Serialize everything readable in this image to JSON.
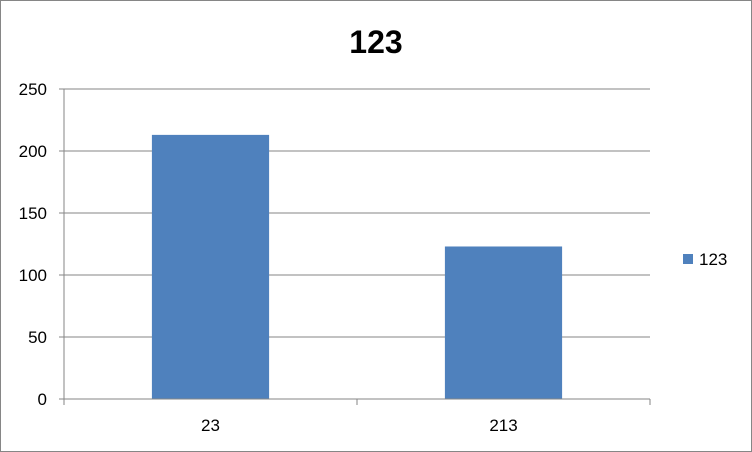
{
  "chart_data": {
    "type": "bar",
    "title": "123",
    "categories": [
      "23",
      "213"
    ],
    "series": [
      {
        "name": "123",
        "values": [
          213,
          123
        ],
        "color": "#4F81BD"
      }
    ],
    "ylim": [
      0,
      250
    ],
    "yticks": [
      0,
      50,
      100,
      150,
      200,
      250
    ],
    "xlabel": "",
    "ylabel": "",
    "grid": true,
    "legend_position": "right"
  },
  "colors": {
    "gridline": "#868686",
    "axis": "#868686",
    "bar": "#4F81BD",
    "border": "#868686"
  }
}
